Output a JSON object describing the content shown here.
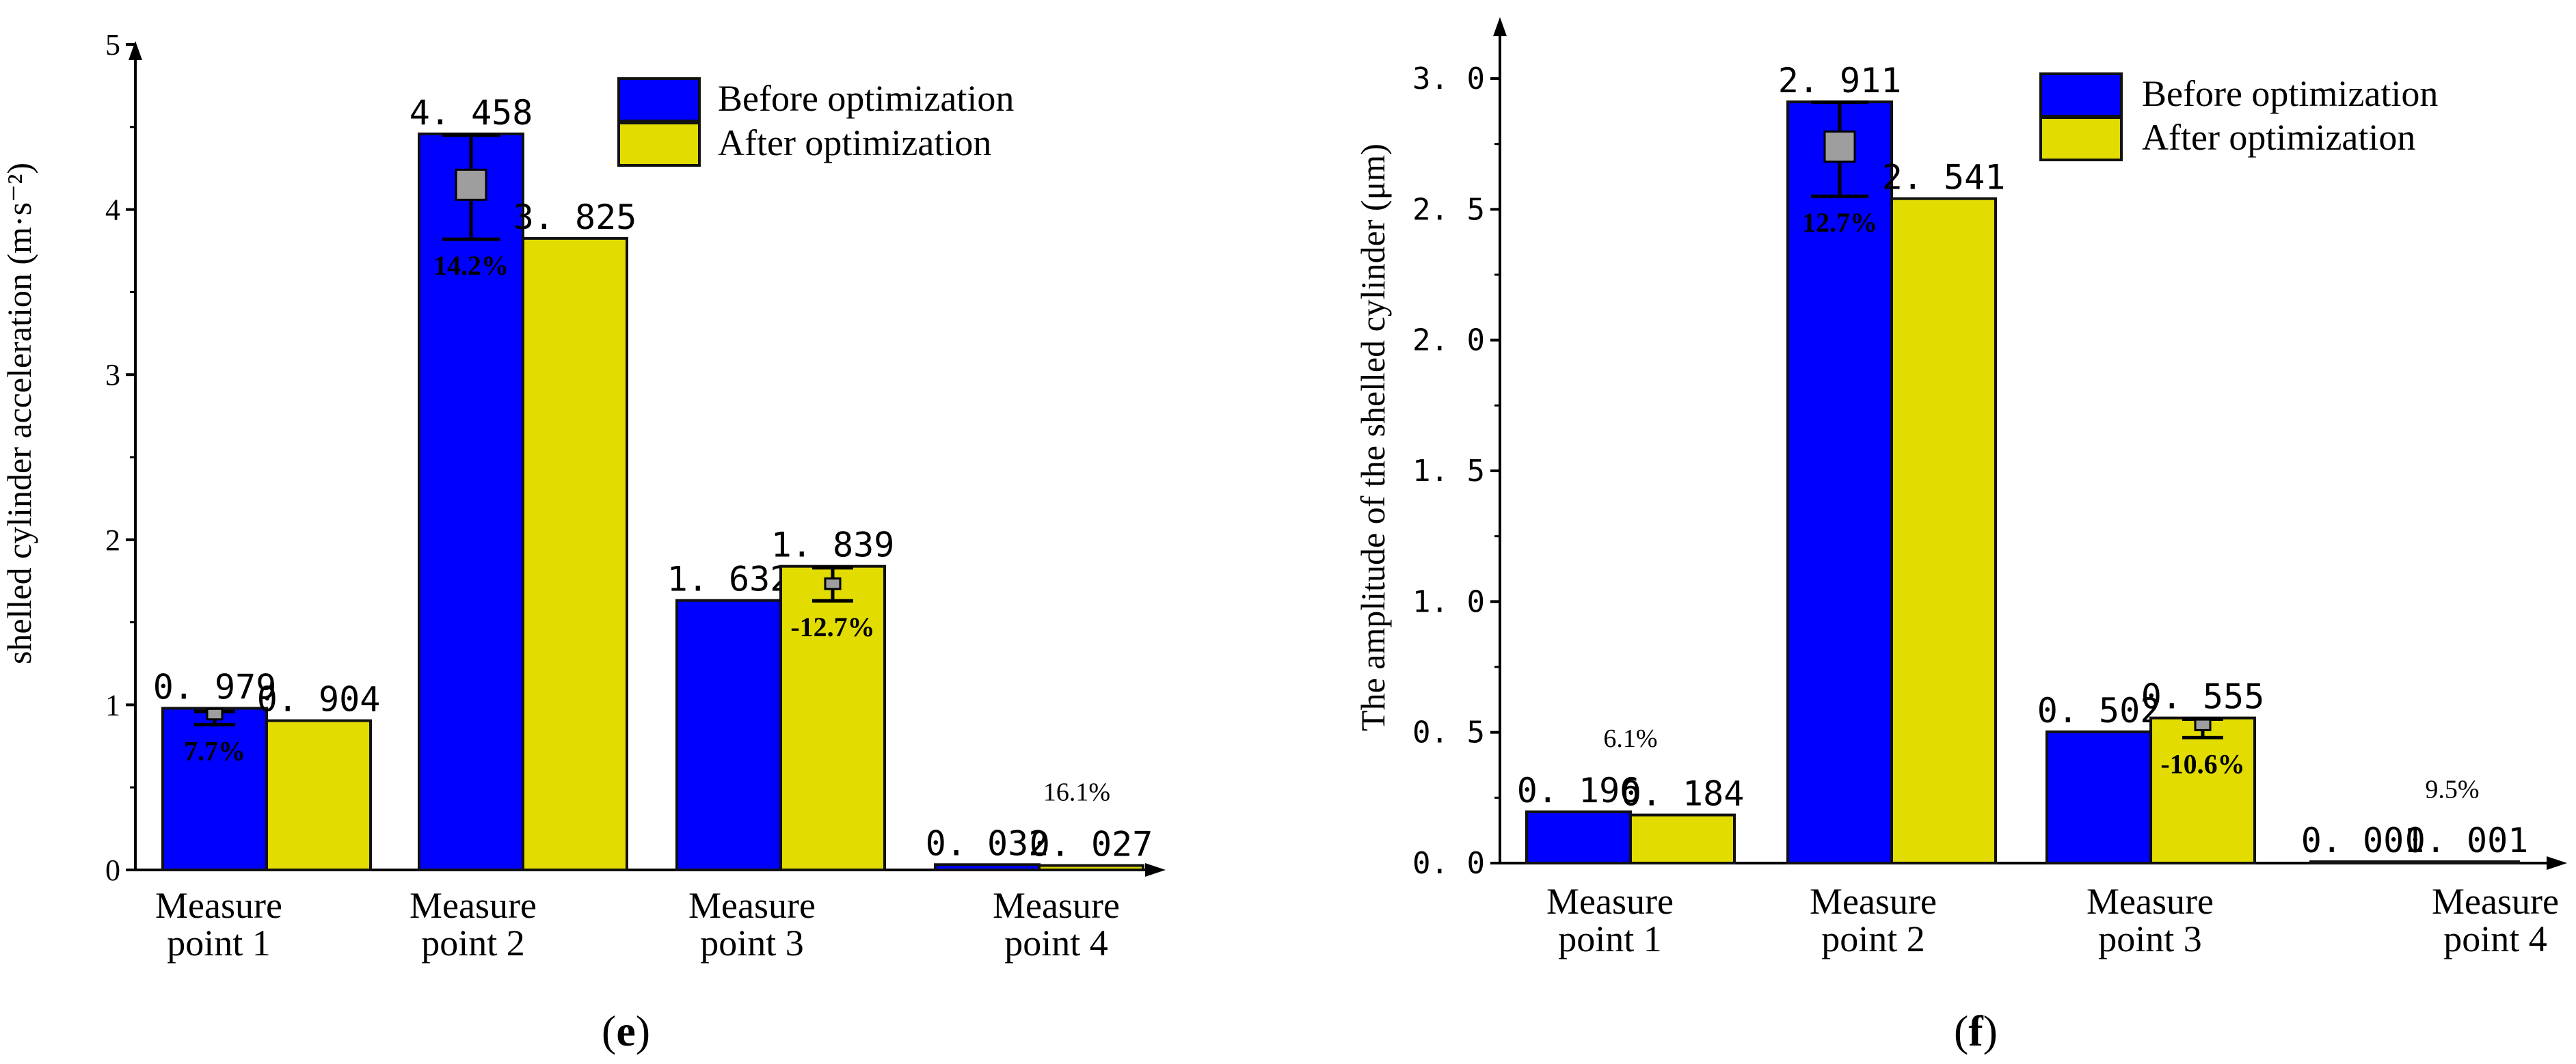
{
  "colors": {
    "before": "#0000ff",
    "after": "#e2dc00",
    "marker": "#9e9e9e"
  },
  "chart_data": [
    {
      "type": "bar",
      "panel_label": "(e)",
      "panel_letter": "e",
      "ylabel": "shelled cylinder acceleration (m·s⁻²)",
      "ylim": [
        0,
        5
      ],
      "yticks": [
        0,
        1,
        2,
        3,
        4,
        5
      ],
      "ytick_labels": [
        "0",
        "1",
        "2",
        "3",
        "4",
        "5"
      ],
      "categories": [
        [
          "Measure",
          "point 1"
        ],
        [
          "Measure",
          "point 2"
        ],
        [
          "Measure",
          "point 3"
        ],
        [
          "Measure",
          "point 4"
        ]
      ],
      "series": [
        {
          "name": "Before optimization",
          "values": [
            0.979,
            4.458,
            1.632,
            0.032
          ],
          "labels": [
            "0. 979",
            "4. 458",
            "1. 632",
            "0. 032"
          ]
        },
        {
          "name": "After optimization",
          "values": [
            0.904,
            3.825,
            1.839,
            0.027
          ],
          "labels": [
            "0. 904",
            "3. 825",
            "1. 839",
            "0. 027"
          ]
        }
      ],
      "annotations": [
        {
          "category": 0,
          "series": 0,
          "text": "7.7%",
          "marker_value": 0.93,
          "err_low": 0.88,
          "err_high": 0.96
        },
        {
          "category": 1,
          "series": 0,
          "text": "14.2%",
          "marker_value": 4.15,
          "err_low": 3.82,
          "err_high": 4.45
        },
        {
          "category": 2,
          "series": 1,
          "text": "-12.7%",
          "marker_value": 1.72,
          "err_low": 1.63,
          "err_high": 1.83
        },
        {
          "category": 3,
          "series": 1,
          "text": "16.1%"
        }
      ]
    },
    {
      "type": "bar",
      "panel_label": "(f)",
      "panel_letter": "f",
      "ylabel": "The amplitude of the shelled cylinder (μm)",
      "ylim": [
        0,
        3.2
      ],
      "yticks": [
        0,
        0.5,
        1.0,
        1.5,
        2.0,
        2.5,
        3.0
      ],
      "ytick_labels": [
        "0. 0",
        "0. 5",
        "1. 0",
        "1. 5",
        "2. 0",
        "2. 5",
        "3. 0"
      ],
      "categories": [
        [
          "Measure",
          "point 1"
        ],
        [
          "Measure",
          "point 2"
        ],
        [
          "Measure",
          "point 3"
        ],
        [
          "Measure",
          "point 4"
        ]
      ],
      "series": [
        {
          "name": "Before optimization",
          "values": [
            0.196,
            2.911,
            0.502,
            0.001
          ],
          "labels": [
            "0. 196",
            "2. 911",
            "0. 502",
            "0. 001"
          ]
        },
        {
          "name": "After optimization",
          "values": [
            0.184,
            2.541,
            0.555,
            0.001
          ],
          "labels": [
            "0. 184",
            "2. 541",
            "0. 555",
            "0. 001"
          ]
        }
      ],
      "annotations": [
        {
          "category": 0,
          "series": 0,
          "text": "6.1%"
        },
        {
          "category": 1,
          "series": 0,
          "text": "12.7%",
          "marker_value": 2.74,
          "err_low": 2.55,
          "err_high": 2.91
        },
        {
          "category": 2,
          "series": 1,
          "text": "-10.6%",
          "marker_value": 0.52,
          "err_low": 0.48,
          "err_high": 0.55
        },
        {
          "category": 3,
          "series": 1,
          "text": "9.5%"
        }
      ]
    }
  ]
}
